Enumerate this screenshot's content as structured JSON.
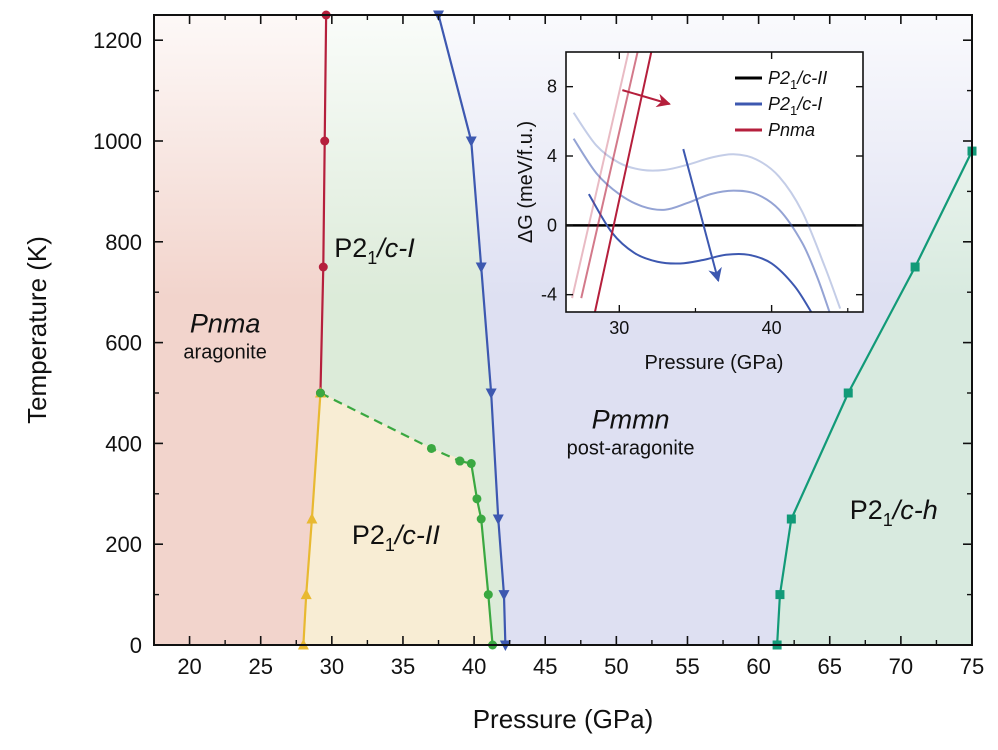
{
  "chart_data": {
    "main": {
      "type": "phase-diagram",
      "xlabel": "Pressure (GPa)",
      "ylabel": "Temperature (K)",
      "xlim": [
        17.5,
        75
      ],
      "ylim": [
        0,
        1250
      ],
      "xticks": [
        20,
        25,
        30,
        35,
        40,
        45,
        50,
        55,
        60,
        65,
        70,
        75
      ],
      "yticks": [
        0,
        200,
        400,
        600,
        800,
        1000,
        1200
      ],
      "regions": [
        {
          "id": "pnma",
          "name": "Pnma",
          "sub": "aragonite",
          "color": "#f2d4cc",
          "label_at": [
            22.5,
            620
          ],
          "polygon": [
            [
              17.5,
              0
            ],
            [
              28,
              0
            ],
            [
              29.2,
              500
            ],
            [
              29.5,
              1000
            ],
            [
              29.6,
              1250
            ],
            [
              17.5,
              1250
            ]
          ]
        },
        {
          "id": "p21c-I",
          "name": "P2₁/c-I",
          "sub": "",
          "color": "#dcebd9",
          "label_at": [
            33,
            770
          ],
          "polygon": [
            [
              29.6,
              1250
            ],
            [
              37.5,
              1250
            ],
            [
              39.8,
              1000
            ],
            [
              40.5,
              750
            ],
            [
              41.2,
              500
            ],
            [
              41.7,
              250
            ],
            [
              42.1,
              100
            ],
            [
              42.2,
              0
            ],
            [
              41.3,
              0
            ],
            [
              41.0,
              100
            ],
            [
              40.5,
              250
            ],
            [
              40.2,
              290
            ],
            [
              39.8,
              360
            ],
            [
              37,
              390
            ],
            [
              29.2,
              500
            ],
            [
              29.5,
              1000
            ]
          ]
        },
        {
          "id": "p21c-II",
          "name": "P2₁/c-II",
          "sub": "",
          "color": "#f8edd4",
          "label_at": [
            34.5,
            200
          ],
          "polygon": [
            [
              28,
              0
            ],
            [
              29.2,
              500
            ],
            [
              37,
              390
            ],
            [
              39.8,
              360
            ],
            [
              40.2,
              290
            ],
            [
              40.5,
              250
            ],
            [
              41.0,
              100
            ],
            [
              41.3,
              0
            ]
          ]
        },
        {
          "id": "pmmn",
          "name": "Pmmn",
          "sub": "post-aragonite",
          "color": "#dee0f2",
          "label_at": [
            51,
            430
          ],
          "polygon": [
            [
              37.5,
              1250
            ],
            [
              75,
              1250
            ],
            [
              75,
              980
            ],
            [
              71,
              750
            ],
            [
              66.3,
              500
            ],
            [
              62.3,
              250
            ],
            [
              61.5,
              100
            ],
            [
              61.3,
              0
            ],
            [
              42.2,
              0
            ],
            [
              42.1,
              100
            ],
            [
              41.7,
              250
            ],
            [
              41.2,
              500
            ],
            [
              40.5,
              750
            ],
            [
              39.8,
              1000
            ]
          ]
        },
        {
          "id": "p21c-h",
          "name": "P2₁/c-h",
          "sub": "",
          "color": "#d8eadf",
          "label_at": [
            69.5,
            250
          ],
          "polygon": [
            [
              61.3,
              0
            ],
            [
              61.5,
              100
            ],
            [
              62.3,
              250
            ],
            [
              66.3,
              500
            ],
            [
              71,
              750
            ],
            [
              75,
              980
            ],
            [
              75,
              0
            ]
          ]
        }
      ],
      "series": [
        {
          "name": "Pnma boundary",
          "color": "#b51f3c",
          "marker": "circle",
          "dashed": false,
          "points": [
            [
              29.2,
              500
            ],
            [
              29.4,
              750
            ],
            [
              29.5,
              1000
            ],
            [
              29.6,
              1250
            ]
          ]
        },
        {
          "name": "Pnma / P2₁/c-II boundary",
          "color": "#e8b931",
          "marker": "triangle",
          "dashed": false,
          "points": [
            [
              28.0,
              0
            ],
            [
              28.2,
              100
            ],
            [
              28.6,
              250
            ],
            [
              29.2,
              500
            ]
          ]
        },
        {
          "name": "P2₁/c-II / P2₁/c-I boundary (dashed)",
          "color": "#3aa841",
          "marker": "circle",
          "dashed": true,
          "points": [
            [
              29.2,
              500
            ],
            [
              37.0,
              390
            ],
            [
              39.0,
              365
            ]
          ]
        },
        {
          "name": "P2₁/c-II / P2₁/c-I boundary",
          "color": "#3aa841",
          "marker": "circle",
          "dashed": false,
          "points": [
            [
              39.0,
              365
            ],
            [
              39.8,
              360
            ],
            [
              40.2,
              290
            ],
            [
              40.5,
              250
            ],
            [
              41.0,
              100
            ],
            [
              41.3,
              0
            ]
          ]
        },
        {
          "name": "P2₁/c-I / Pmmn boundary",
          "color": "#3d58b0",
          "marker": "triangle-down",
          "dashed": false,
          "points": [
            [
              37.5,
              1250
            ],
            [
              39.8,
              1000
            ],
            [
              40.5,
              750
            ],
            [
              41.2,
              500
            ],
            [
              41.7,
              250
            ],
            [
              42.1,
              100
            ],
            [
              42.2,
              0
            ]
          ]
        },
        {
          "name": "Pmmn / P2₁/c-h boundary",
          "color": "#129a78",
          "marker": "square",
          "dashed": false,
          "points": [
            [
              61.3,
              0
            ],
            [
              61.5,
              100
            ],
            [
              62.3,
              250
            ],
            [
              66.3,
              500
            ],
            [
              71.0,
              750
            ],
            [
              75.0,
              980
            ]
          ]
        }
      ]
    },
    "inset": {
      "type": "line",
      "xlabel": "Pressure (GPa)",
      "ylabel": "ΔG (meV/f.u.)",
      "xlim": [
        26.5,
        46
      ],
      "ylim": [
        -5,
        10
      ],
      "xticks": [
        30,
        40
      ],
      "yticks": [
        -4,
        0,
        4,
        8
      ],
      "legend": [
        {
          "label": "P2₁/c-II",
          "color": "#000000"
        },
        {
          "label": "P2₁/c-I",
          "color": "#3d58b0"
        },
        {
          "label": "Pnma",
          "color": "#b51f3c"
        }
      ],
      "series": [
        {
          "name": "P2₁/c-II",
          "color": "#000000",
          "opacity": 1,
          "width": 2.5,
          "x": [
            26.5,
            46
          ],
          "y": [
            0,
            0
          ]
        },
        {
          "name": "P2₁/c-I (T1)",
          "color": "#3d58b0",
          "opacity": 0.3,
          "width": 2,
          "x": [
            27,
            28.5,
            30,
            31.5,
            33,
            34.5,
            36,
            37.5,
            39,
            40.5,
            42,
            43.5,
            44.5
          ],
          "y": [
            6.5,
            4.6,
            3.6,
            3.2,
            3.2,
            3.5,
            3.9,
            4.1,
            3.8,
            2.8,
            0.8,
            -2.4,
            -4.8
          ]
        },
        {
          "name": "P2₁/c-I (T2)",
          "color": "#3d58b0",
          "opacity": 0.55,
          "width": 2,
          "x": [
            27,
            28.5,
            30,
            31.5,
            33,
            34.5,
            36,
            37.5,
            39,
            40.5,
            42,
            43,
            43.8
          ],
          "y": [
            5.0,
            3.0,
            1.8,
            1.1,
            0.9,
            1.3,
            1.8,
            2.0,
            1.8,
            0.9,
            -1.0,
            -3.0,
            -5.0
          ]
        },
        {
          "name": "P2₁/c-I (T3)",
          "color": "#3d58b0",
          "opacity": 1,
          "width": 2,
          "x": [
            28,
            29.5,
            31,
            32.5,
            34,
            35.5,
            37,
            38.5,
            40,
            41.5,
            42.6
          ],
          "y": [
            1.8,
            -0.4,
            -1.6,
            -2.1,
            -2.2,
            -2.0,
            -1.7,
            -1.7,
            -2.2,
            -3.5,
            -5.0
          ]
        },
        {
          "name": "Pnma (T1)",
          "color": "#b51f3c",
          "opacity": 0.3,
          "width": 2,
          "x": [
            26.9,
            30.6
          ],
          "y": [
            -4.2,
            10
          ]
        },
        {
          "name": "Pnma (T2)",
          "color": "#b51f3c",
          "opacity": 0.6,
          "width": 2,
          "x": [
            27.5,
            31.2
          ],
          "y": [
            -4.2,
            10
          ]
        },
        {
          "name": "Pnma (T3)",
          "color": "#b51f3c",
          "opacity": 1,
          "width": 2,
          "x": [
            28.4,
            32.1
          ],
          "y": [
            -5,
            10
          ]
        }
      ],
      "arrows": [
        {
          "color": "#b51f3c",
          "from": [
            30.2,
            7.8
          ],
          "to": [
            33.3,
            7.0
          ]
        },
        {
          "color": "#3d58b0",
          "from": [
            34.2,
            4.4
          ],
          "to": [
            36.5,
            -3.2
          ]
        }
      ]
    }
  }
}
